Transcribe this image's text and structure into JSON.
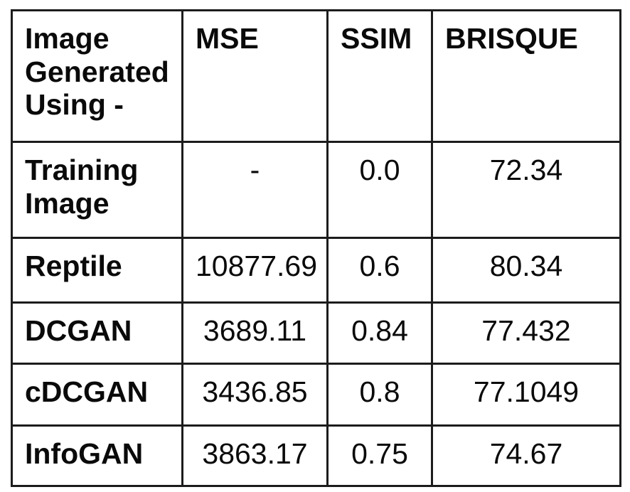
{
  "colors": {
    "background": "#ffffff",
    "border": "#1c1c1c",
    "text": "#0a0a0a"
  },
  "table": {
    "header": {
      "image_generated_using": "Image\nGenerated\nUsing -",
      "mse": "MSE",
      "ssim": "SSIM",
      "brisque": "BRISQUE"
    },
    "rows": [
      {
        "label": "Training\nImage",
        "mse": "-",
        "ssim": "0.0",
        "brisque": "72.34"
      },
      {
        "label": "Reptile",
        "mse": "10877.69",
        "ssim": "0.6",
        "brisque": "80.34"
      },
      {
        "label": "DCGAN",
        "mse": "3689.11",
        "ssim": "0.84",
        "brisque": "77.432"
      },
      {
        "label": "cDCGAN",
        "mse": "3436.85",
        "ssim": "0.8",
        "brisque": "77.1049"
      },
      {
        "label": "InfoGAN",
        "mse": "3863.17",
        "ssim": "0.75",
        "brisque": "74.67"
      }
    ]
  }
}
